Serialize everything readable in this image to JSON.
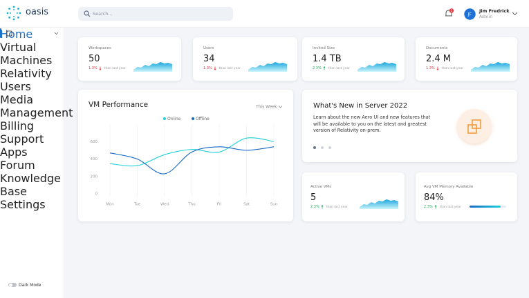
{
  "brand": {
    "name": "oasis"
  },
  "search": {
    "placeholder": "Search..."
  },
  "notifications": {
    "count": "2"
  },
  "user": {
    "initials": "JF",
    "name": "Jim Fredrick",
    "role": "Admin"
  },
  "sidebar": {
    "items": [
      {
        "label": "Home",
        "active": true
      },
      {
        "label": "Virtual Machines"
      },
      {
        "label": "Relativity"
      },
      {
        "label": "Users",
        "expandable": true
      },
      {
        "label": "Media Management"
      },
      {
        "label": "Billing"
      },
      {
        "label": "Support"
      },
      {
        "label": "Apps"
      },
      {
        "label": "Forum"
      },
      {
        "label": "Knowledge Base"
      },
      {
        "label": "Settings"
      }
    ],
    "dark_mode": "Dark Mode"
  },
  "stats": [
    {
      "label": "Workspaces",
      "value": "50",
      "change": "1.3%",
      "trend": "down",
      "note": "than last year"
    },
    {
      "label": "Users",
      "value": "34",
      "change": "1.3%",
      "trend": "down",
      "note": "than last year"
    },
    {
      "label": "Invited Size",
      "value": "1.4 TB",
      "change": "2.3%",
      "trend": "up",
      "note": "than last year"
    },
    {
      "label": "Documents",
      "value": "2.4 M",
      "change": "1.3%",
      "trend": "down",
      "note": "than last year"
    }
  ],
  "vm_performance": {
    "title": "VM Performance",
    "period": "This Week",
    "chart": {
      "type": "line",
      "categories": [
        "Mon",
        "Tue",
        "Wed",
        "Thu",
        "Fri",
        "Sat",
        "Sun"
      ],
      "series": [
        {
          "name": "Online",
          "color": "#1fcfdc",
          "values": [
            347,
            324,
            450,
            510,
            480,
            640,
            600
          ]
        },
        {
          "name": "Offline",
          "color": "#1668c8",
          "values": [
            470,
            400,
            230,
            480,
            540,
            500,
            540
          ]
        }
      ],
      "ylim": [
        0,
        800
      ],
      "yticks": [
        0,
        200,
        400,
        600
      ],
      "grid": true
    }
  },
  "whats_new": {
    "title": "What's New in Server 2022",
    "body": "Learn about the new Aero UI and new features that will be available to you on the latest and greatest version of Relativity on-prem.",
    "slides": 3,
    "active_slide": 0
  },
  "small_stats": [
    {
      "label": "Active VMs",
      "value": "5",
      "change": "2.3%",
      "trend": "up",
      "note": "than last year",
      "widget": "sparkline"
    },
    {
      "label": "Avg VM Memory Available",
      "value": "84%",
      "change": "2.3%",
      "trend": "up",
      "note": "than last year",
      "widget": "progress"
    }
  ]
}
